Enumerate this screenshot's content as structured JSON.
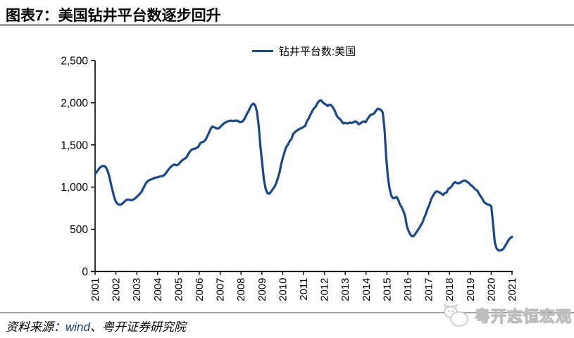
{
  "header": {
    "title": "图表7：美国钻井平台数逐步回升"
  },
  "legend": {
    "label": "钻井平台数:美国"
  },
  "footer": {
    "label": "资料来源：",
    "source_wind": "wind",
    "source_rest": "、粤开证券研究院"
  },
  "watermark": {
    "text": "粤开志恒宏观"
  },
  "colors": {
    "line": "#17478F",
    "rule": "#A3A3A3",
    "axis": "#000000",
    "watermark_stroke": "#BDBDBD"
  },
  "chart_data": {
    "type": "line",
    "title": "图表7：美国钻井平台数逐步回升",
    "legend_position": "top",
    "grid": false,
    "ylim": [
      0,
      2500
    ],
    "y_ticks": [
      0,
      500,
      1000,
      1500,
      2000,
      2500
    ],
    "y_tick_labels": [
      "0",
      "500",
      "1,000",
      "1,500",
      "2,000",
      "2,500"
    ],
    "x_tick_labels": [
      "2001",
      "2002",
      "2003",
      "2004",
      "2005",
      "2006",
      "2007",
      "2008",
      "2009",
      "2010",
      "2011",
      "2012",
      "2013",
      "2014",
      "2015",
      "2016",
      "2017",
      "2018",
      "2019",
      "2020",
      "2021"
    ],
    "x_start": "2001-01",
    "x_end": "2021-03",
    "x_frequency": "monthly",
    "series": [
      {
        "name": "钻井平台数:美国",
        "color": "#17478F",
        "values": [
          1156,
          1181,
          1211,
          1233,
          1248,
          1252,
          1242,
          1208,
          1145,
          1058,
          968,
          888,
          828,
          802,
          791,
          793,
          806,
          826,
          846,
          853,
          849,
          844,
          851,
          863,
          880,
          901,
          921,
          945,
          986,
          1026,
          1060,
          1078,
          1088,
          1094,
          1104,
          1112,
          1114,
          1122,
          1126,
          1129,
          1139,
          1162,
          1190,
          1218,
          1240,
          1258,
          1268,
          1258,
          1262,
          1284,
          1306,
          1324,
          1336,
          1352,
          1388,
          1420,
          1444,
          1450,
          1456,
          1466,
          1480,
          1520,
          1532,
          1538,
          1558,
          1596,
          1640,
          1688,
          1716,
          1712,
          1702,
          1694,
          1700,
          1720,
          1740,
          1758,
          1770,
          1780,
          1786,
          1788,
          1784,
          1786,
          1790,
          1784,
          1770,
          1772,
          1786,
          1820,
          1862,
          1900,
          1942,
          1978,
          1990,
          1964,
          1890,
          1720,
          1480,
          1280,
          1090,
          980,
          930,
          921,
          940,
          972,
          1000,
          1040,
          1100,
          1170,
          1269,
          1350,
          1419,
          1476,
          1506,
          1547,
          1572,
          1631,
          1651,
          1668,
          1683,
          1694,
          1702,
          1713,
          1726,
          1782,
          1813,
          1860,
          1898,
          1934,
          1952,
          1994,
          2021,
          2030,
          2008,
          1990,
          1979,
          1962,
          1976,
          1972,
          1945,
          1912,
          1859,
          1824,
          1809,
          1784,
          1756,
          1762,
          1756,
          1757,
          1766,
          1761,
          1770,
          1778,
          1771,
          1744,
          1755,
          1771,
          1777,
          1769,
          1803,
          1835,
          1859,
          1861,
          1876,
          1904,
          1930,
          1925,
          1912,
          1882,
          1683,
          1348,
          1110,
          976,
          894,
          868,
          872,
          883,
          848,
          791,
          760,
          714,
          654,
          532,
          478,
          437,
          416,
          421,
          449,
          481,
          509,
          544,
          580,
          634,
          683,
          744,
          789,
          853,
          893,
          927,
          949,
          946,
          936,
          923,
          907,
          930,
          936,
          978,
          989,
          1011,
          1043,
          1059,
          1048,
          1044,
          1053,
          1067,
          1076,
          1078,
          1060,
          1049,
          1023,
          1012,
          988,
          969,
          954,
          916,
          886,
          851,
          817,
          805,
          791,
          790,
          772,
          566,
          348,
          274,
          251,
          247,
          255,
          269,
          303,
          336,
          373,
          397,
          411
        ]
      }
    ]
  }
}
